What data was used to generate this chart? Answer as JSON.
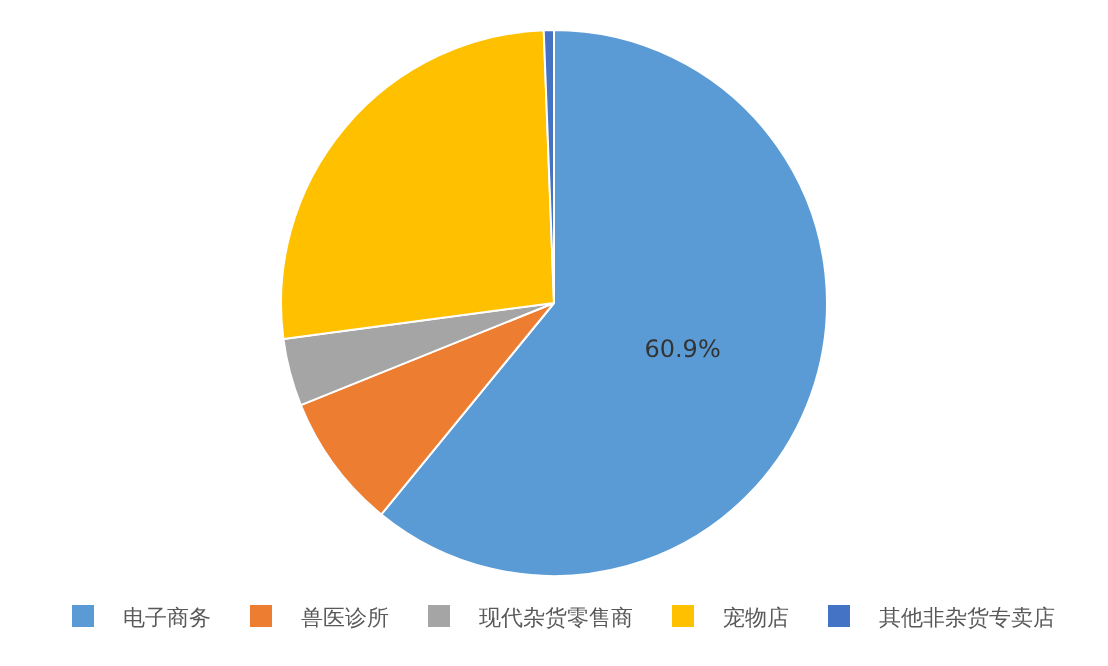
{
  "chart_data": {
    "type": "pie",
    "categories": [
      "电子商务",
      "兽医诊所",
      "现代杂货零售商",
      "宠物店",
      "其他非杂货专卖店"
    ],
    "values": [
      60.9,
      8.0,
      4.0,
      26.5,
      0.6
    ],
    "colors": [
      "#5b9bd5",
      "#ed7d31",
      "#a5a5a5",
      "#ffc000",
      "#4472c4"
    ],
    "value_labels": [
      "60.9%",
      null,
      null,
      null,
      null
    ],
    "legend": "bottom"
  }
}
